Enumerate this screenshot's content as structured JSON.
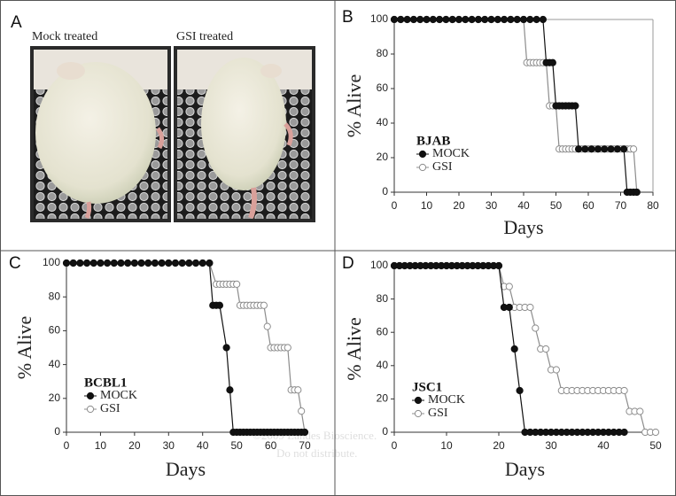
{
  "figure": {
    "panel_label": "A",
    "captions": [
      "Mock treated",
      "GSI treated"
    ],
    "watermark": [
      "©2009 Landes Bioscience.",
      "Do not distribute."
    ]
  },
  "chart_data": [
    {
      "type": "line",
      "panel_label": "B",
      "legend_title": "BJAB",
      "xlabel": "Days",
      "ylabel": "% Alive",
      "xlim": [
        0,
        80
      ],
      "xticks": [
        0,
        10,
        20,
        30,
        40,
        50,
        60,
        70,
        80
      ],
      "ylim": [
        0,
        100
      ],
      "yticks": [
        0,
        20,
        40,
        60,
        80,
        100
      ],
      "frame": true,
      "series": [
        {
          "name": "MOCK",
          "color": "#111111",
          "filled": true,
          "x": [
            0,
            2,
            4,
            6,
            8,
            10,
            12,
            14,
            16,
            18,
            20,
            22,
            24,
            26,
            28,
            30,
            32,
            34,
            36,
            38,
            40,
            42,
            44,
            46,
            47,
            48,
            49,
            50,
            51,
            52,
            53,
            54,
            55,
            56,
            57,
            59,
            61,
            63,
            65,
            67,
            69,
            71,
            72,
            73,
            74,
            75
          ],
          "values": [
            100,
            100,
            100,
            100,
            100,
            100,
            100,
            100,
            100,
            100,
            100,
            100,
            100,
            100,
            100,
            100,
            100,
            100,
            100,
            100,
            100,
            100,
            100,
            100,
            75,
            75,
            75,
            50,
            50,
            50,
            50,
            50,
            50,
            50,
            25,
            25,
            25,
            25,
            25,
            25,
            25,
            25,
            0,
            0,
            0,
            0
          ]
        },
        {
          "name": "GSI",
          "color": "#8c8c8c",
          "filled": false,
          "x": [
            0,
            2,
            4,
            6,
            8,
            10,
            12,
            14,
            16,
            18,
            20,
            22,
            24,
            26,
            28,
            30,
            32,
            34,
            36,
            38,
            40,
            41,
            42,
            43,
            44,
            45,
            46,
            47,
            48,
            49,
            50,
            51,
            52,
            53,
            54,
            55,
            56,
            58,
            60,
            62,
            64,
            66,
            68,
            70,
            72,
            73,
            74,
            75
          ],
          "values": [
            100,
            100,
            100,
            100,
            100,
            100,
            100,
            100,
            100,
            100,
            100,
            100,
            100,
            100,
            100,
            100,
            100,
            100,
            100,
            100,
            100,
            75,
            75,
            75,
            75,
            75,
            75,
            75,
            50,
            50,
            50,
            25,
            25,
            25,
            25,
            25,
            25,
            25,
            25,
            25,
            25,
            25,
            25,
            25,
            25,
            25,
            25,
            0
          ]
        }
      ]
    },
    {
      "type": "line",
      "panel_label": "C",
      "legend_title": "BCBL1",
      "xlabel": "Days",
      "ylabel": "% Alive",
      "xlim": [
        0,
        70
      ],
      "xticks": [
        0,
        10,
        20,
        30,
        40,
        50,
        60,
        70
      ],
      "ylim": [
        0,
        100
      ],
      "yticks": [
        0,
        20,
        40,
        60,
        80,
        100
      ],
      "frame": false,
      "series": [
        {
          "name": "MOCK",
          "color": "#111111",
          "filled": true,
          "x": [
            0,
            2,
            4,
            6,
            8,
            10,
            12,
            14,
            16,
            18,
            20,
            22,
            24,
            26,
            28,
            30,
            32,
            34,
            36,
            38,
            40,
            42,
            43,
            44,
            45,
            47,
            48,
            49,
            50,
            51,
            52,
            53,
            54,
            55,
            56,
            57,
            58,
            59,
            60,
            61,
            62,
            63,
            64,
            65,
            66,
            67,
            68,
            69,
            70
          ],
          "values": [
            100,
            100,
            100,
            100,
            100,
            100,
            100,
            100,
            100,
            100,
            100,
            100,
            100,
            100,
            100,
            100,
            100,
            100,
            100,
            100,
            100,
            100,
            75,
            75,
            75,
            50,
            25,
            0,
            0,
            0,
            0,
            0,
            0,
            0,
            0,
            0,
            0,
            0,
            0,
            0,
            0,
            0,
            0,
            0,
            0,
            0,
            0,
            0,
            0
          ]
        },
        {
          "name": "GSI",
          "color": "#8c8c8c",
          "filled": false,
          "x": [
            0,
            2,
            4,
            6,
            8,
            10,
            12,
            14,
            16,
            18,
            20,
            22,
            24,
            26,
            28,
            30,
            32,
            34,
            36,
            38,
            40,
            42,
            44,
            45,
            46,
            47,
            48,
            49,
            50,
            51,
            52,
            53,
            54,
            55,
            56,
            57,
            58,
            59,
            60,
            61,
            62,
            63,
            64,
            65,
            66,
            67,
            68,
            69,
            70
          ],
          "values": [
            100,
            100,
            100,
            100,
            100,
            100,
            100,
            100,
            100,
            100,
            100,
            100,
            100,
            100,
            100,
            100,
            100,
            100,
            100,
            100,
            100,
            100,
            87.5,
            87.5,
            87.5,
            87.5,
            87.5,
            87.5,
            87.5,
            75,
            75,
            75,
            75,
            75,
            75,
            75,
            75,
            62.5,
            50,
            50,
            50,
            50,
            50,
            50,
            25,
            25,
            25,
            12.5,
            0
          ]
        }
      ]
    },
    {
      "type": "line",
      "panel_label": "D",
      "legend_title": "JSC1",
      "xlabel": "Days",
      "ylabel": "% Alive",
      "xlim": [
        0,
        50
      ],
      "xticks": [
        0,
        10,
        20,
        30,
        40,
        50
      ],
      "ylim": [
        0,
        100
      ],
      "yticks": [
        0,
        20,
        40,
        60,
        80,
        100
      ],
      "frame": false,
      "series": [
        {
          "name": "MOCK",
          "color": "#111111",
          "filled": true,
          "x": [
            0,
            1,
            2,
            3,
            4,
            5,
            6,
            7,
            8,
            9,
            10,
            11,
            12,
            13,
            14,
            15,
            16,
            17,
            18,
            19,
            20,
            21,
            22,
            23,
            24,
            25,
            26,
            27,
            28,
            29,
            30,
            31,
            32,
            33,
            34,
            35,
            36,
            37,
            38,
            39,
            40,
            41,
            42,
            43,
            44
          ],
          "values": [
            100,
            100,
            100,
            100,
            100,
            100,
            100,
            100,
            100,
            100,
            100,
            100,
            100,
            100,
            100,
            100,
            100,
            100,
            100,
            100,
            100,
            75,
            75,
            50,
            25,
            0,
            0,
            0,
            0,
            0,
            0,
            0,
            0,
            0,
            0,
            0,
            0,
            0,
            0,
            0,
            0,
            0,
            0,
            0,
            0
          ]
        },
        {
          "name": "GSI",
          "color": "#8c8c8c",
          "filled": false,
          "x": [
            0,
            1,
            2,
            3,
            4,
            5,
            6,
            7,
            8,
            9,
            10,
            11,
            12,
            13,
            14,
            15,
            16,
            17,
            18,
            19,
            20,
            21,
            22,
            23,
            24,
            25,
            26,
            27,
            28,
            29,
            30,
            31,
            32,
            33,
            34,
            35,
            36,
            37,
            38,
            39,
            40,
            41,
            42,
            43,
            44,
            45,
            46,
            47,
            48,
            49,
            50
          ],
          "values": [
            100,
            100,
            100,
            100,
            100,
            100,
            100,
            100,
            100,
            100,
            100,
            100,
            100,
            100,
            100,
            100,
            100,
            100,
            100,
            100,
            100,
            87.5,
            87.5,
            75,
            75,
            75,
            75,
            62.5,
            50,
            50,
            37.5,
            37.5,
            25,
            25,
            25,
            25,
            25,
            25,
            25,
            25,
            25,
            25,
            25,
            25,
            25,
            12.5,
            12.5,
            12.5,
            0,
            0,
            0
          ]
        }
      ]
    }
  ]
}
